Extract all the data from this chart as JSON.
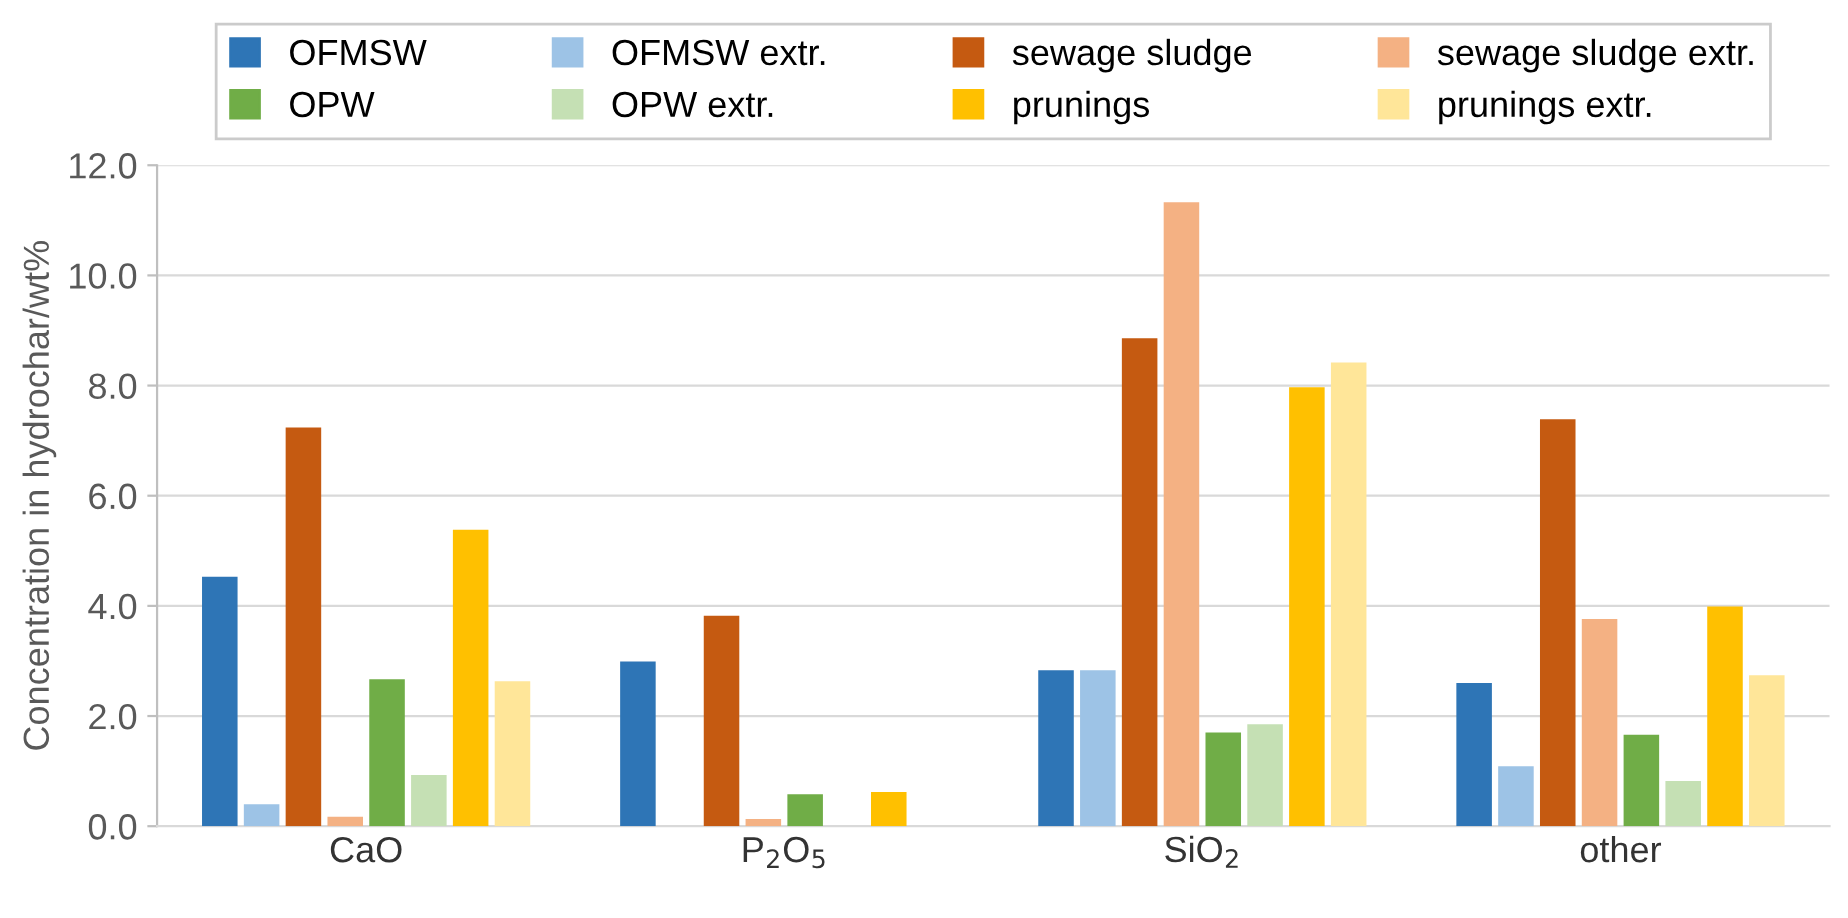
{
  "chart_data": {
    "type": "bar",
    "ylabel": "Concentration in hydrochar/wt%",
    "categories": [
      "CaO",
      "P$_{2}$O$_{5}$",
      "SiO$_{2}$",
      "other"
    ],
    "series": [
      {
        "name": "OFMSW",
        "color": "#2e75b6",
        "values": [
          4.53,
          2.99,
          2.83,
          2.6
        ]
      },
      {
        "name": "OFMSW extr.",
        "color": "#9dc3e6",
        "values": [
          0.4,
          null,
          2.83,
          1.09
        ]
      },
      {
        "name": "sewage sludge",
        "color": "#c55a11",
        "values": [
          7.24,
          3.82,
          8.86,
          7.39
        ]
      },
      {
        "name": "sewage sludge extr.",
        "color": "#f4b183",
        "values": [
          0.17,
          0.13,
          11.33,
          3.76
        ]
      },
      {
        "name": "OPW",
        "color": "#70ad47",
        "values": [
          2.67,
          0.58,
          1.7,
          1.66
        ]
      },
      {
        "name": "OPW extr.",
        "color": "#c5e0b4",
        "values": [
          0.93,
          null,
          1.85,
          0.82
        ]
      },
      {
        "name": "prunings",
        "color": "#ffc000",
        "values": [
          5.38,
          0.62,
          7.97,
          3.99
        ]
      },
      {
        "name": "prunings extr.",
        "color": "#ffe699",
        "values": [
          2.63,
          null,
          8.42,
          2.74
        ]
      }
    ],
    "ylim": [
      0,
      12
    ],
    "yticks": [
      {
        "value": 0,
        "label": "0.0"
      },
      {
        "value": 2,
        "label": "2.0"
      },
      {
        "value": 4,
        "label": "4.0"
      },
      {
        "value": 6,
        "label": "6.0"
      },
      {
        "value": 8,
        "label": "8.0"
      },
      {
        "value": 10,
        "label": "10.0"
      },
      {
        "value": 12,
        "label": "12.0"
      }
    ],
    "grid": "y",
    "legend": "top"
  }
}
